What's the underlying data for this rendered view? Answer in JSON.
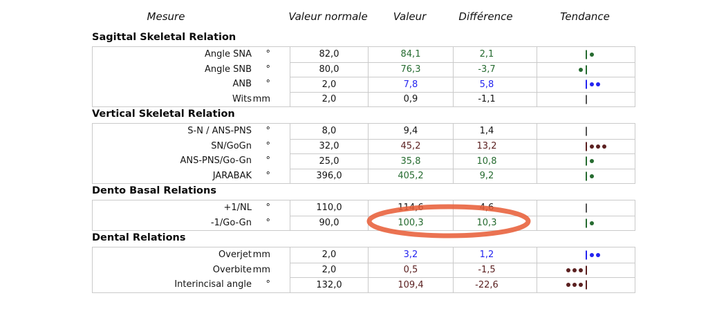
{
  "colors": {
    "green": "#266b30",
    "blue": "#2424f0",
    "red": "#5b2020",
    "normal": "#141414",
    "trend_neutral": "#555555",
    "border": "#cacaca",
    "annotation": "#e8603a"
  },
  "table": {
    "headers": {
      "measure": "Mesure",
      "normal": "Valeur normale",
      "value": "Valeur",
      "difference": "Différence",
      "trend": "Tendance"
    },
    "sections": [
      {
        "title": "Sagittal Skeletal Relation",
        "rows": [
          {
            "name": "Angle SNA",
            "unit": "°",
            "normal": "82,0",
            "value": "84,1",
            "difference": "2,1",
            "status": "green",
            "trend": {
              "dots": 1,
              "side": "right"
            }
          },
          {
            "name": "Angle SNB",
            "unit": "°",
            "normal": "80,0",
            "value": "76,3",
            "difference": "-3,7",
            "status": "green",
            "trend": {
              "dots": 1,
              "side": "left"
            }
          },
          {
            "name": "ANB",
            "unit": "°",
            "normal": "2,0",
            "value": "7,8",
            "difference": "5,8",
            "status": "blue",
            "trend": {
              "dots": 2,
              "side": "right"
            }
          },
          {
            "name": "Wits",
            "unit": "mm",
            "normal": "2,0",
            "value": "0,9",
            "difference": "-1,1",
            "status": "normal",
            "trend": {
              "dots": 0,
              "side": "none"
            }
          }
        ]
      },
      {
        "title": "Vertical Skeletal Relation",
        "rows": [
          {
            "name": "S-N / ANS-PNS",
            "unit": "°",
            "normal": "8,0",
            "value": "9,4",
            "difference": "1,4",
            "status": "normal",
            "trend": {
              "dots": 0,
              "side": "none"
            }
          },
          {
            "name": "SN/GoGn",
            "unit": "°",
            "normal": "32,0",
            "value": "45,2",
            "difference": "13,2",
            "status": "red",
            "trend": {
              "dots": 3,
              "side": "right"
            }
          },
          {
            "name": "ANS-PNS/Go-Gn",
            "unit": "°",
            "normal": "25,0",
            "value": "35,8",
            "difference": "10,8",
            "status": "green",
            "trend": {
              "dots": 1,
              "side": "right"
            }
          },
          {
            "name": "JARABAK",
            "unit": "°",
            "normal": "396,0",
            "value": "405,2",
            "difference": "9,2",
            "status": "green",
            "trend": {
              "dots": 1,
              "side": "right"
            }
          }
        ]
      },
      {
        "title": "Dento Basal Relations",
        "rows": [
          {
            "name": "+1/NL",
            "unit": "°",
            "normal": "110,0",
            "value": "114,6",
            "difference": "4,6",
            "status": "normal",
            "trend": {
              "dots": 0,
              "side": "none"
            }
          },
          {
            "name": "-1/Go-Gn",
            "unit": "°",
            "normal": "90,0",
            "value": "100,3",
            "difference": "10,3",
            "status": "green",
            "trend": {
              "dots": 1,
              "side": "right"
            },
            "highlighted": true
          }
        ]
      },
      {
        "title": "Dental Relations",
        "rows": [
          {
            "name": "Overjet",
            "unit": "mm",
            "normal": "2,0",
            "value": "3,2",
            "difference": "1,2",
            "status": "blue",
            "trend": {
              "dots": 2,
              "side": "right"
            }
          },
          {
            "name": "Overbite",
            "unit": "mm",
            "normal": "2,0",
            "value": "0,5",
            "difference": "-1,5",
            "status": "red",
            "trend": {
              "dots": 3,
              "side": "left"
            }
          },
          {
            "name": "Interincisal angle",
            "unit": "°",
            "normal": "132,0",
            "value": "109,4",
            "difference": "-22,6",
            "status": "red",
            "trend": {
              "dots": 3,
              "side": "left"
            }
          }
        ]
      }
    ]
  },
  "annotation": {
    "shape": "ellipse",
    "color": "#e8603a",
    "row": "-1/Go-Gn",
    "circled_values": [
      "100,3",
      "10,3"
    ]
  }
}
